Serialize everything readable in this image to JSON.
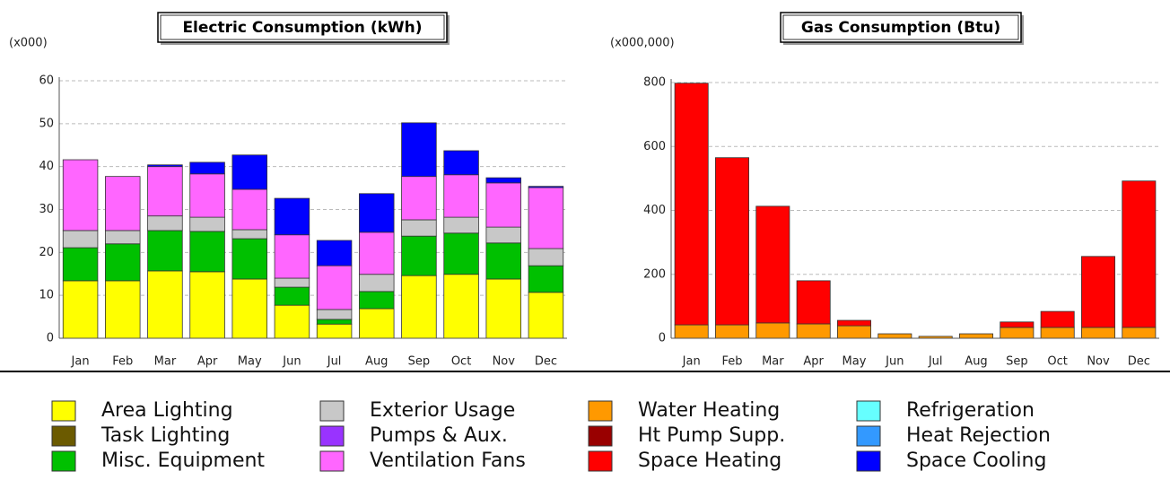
{
  "chart_data": [
    {
      "type": "bar",
      "stacked": true,
      "title": "Electric Consumption (kWh)",
      "y_unit": "(x000)",
      "categories": [
        "Jan",
        "Feb",
        "Mar",
        "Apr",
        "May",
        "Jun",
        "Jul",
        "Aug",
        "Sep",
        "Oct",
        "Nov",
        "Dec"
      ],
      "series": [
        {
          "color": "#ffff00",
          "values": [
            13.4,
            13.4,
            15.7,
            15.5,
            13.8,
            7.7,
            3.3,
            6.9,
            14.6,
            14.9,
            13.8,
            10.7
          ]
        },
        {
          "color": "#00c000",
          "values": [
            7.7,
            8.6,
            9.4,
            9.4,
            9.4,
            4.2,
            1.1,
            4.0,
            9.2,
            9.6,
            8.4,
            6.2
          ]
        },
        {
          "color": "#c8c8c8",
          "values": [
            4.0,
            3.1,
            3.4,
            3.3,
            2.1,
            2.1,
            2.3,
            4.0,
            3.8,
            3.7,
            3.7,
            4.0
          ]
        },
        {
          "color": "#ff66ff",
          "values": [
            16.5,
            12.6,
            11.5,
            10.1,
            9.4,
            10.1,
            10.2,
            9.8,
            10.1,
            9.9,
            10.3,
            14.2
          ]
        },
        {
          "color": "#0000ff",
          "values": [
            0,
            0,
            0.4,
            2.7,
            8.0,
            8.5,
            5.9,
            9.0,
            12.5,
            5.6,
            1.2,
            0.3
          ]
        }
      ],
      "ylim": [
        0,
        60
      ],
      "yticks": [
        0,
        10,
        20,
        30,
        40,
        50,
        60
      ],
      "grid": true
    },
    {
      "type": "bar",
      "stacked": true,
      "title": "Gas Consumption (Btu)",
      "y_unit": "(x000,000)",
      "categories": [
        "Jan",
        "Feb",
        "Mar",
        "Apr",
        "May",
        "Jun",
        "Jul",
        "Aug",
        "Sep",
        "Oct",
        "Nov",
        "Dec"
      ],
      "series": [
        {
          "color": "#ff9900",
          "values": [
            42,
            42,
            48,
            45,
            39,
            14,
            6,
            14,
            34,
            34,
            34,
            34
          ]
        },
        {
          "color": "#ff0000",
          "values": [
            756,
            523,
            365,
            135,
            17,
            0,
            0,
            0,
            17,
            50,
            222,
            458
          ]
        }
      ],
      "ylim": [
        0,
        800
      ],
      "yticks": [
        0,
        200,
        400,
        600,
        800
      ],
      "grid": true
    }
  ],
  "legend": [
    {
      "name": "Area Lighting",
      "color": "#ffff00"
    },
    {
      "name": "Task Lighting",
      "color": "#6b5a00"
    },
    {
      "name": "Misc. Equipment",
      "color": "#00c000"
    },
    {
      "name": "Exterior Usage",
      "color": "#c8c8c8"
    },
    {
      "name": "Pumps & Aux.",
      "color": "#9933ff"
    },
    {
      "name": "Ventilation Fans",
      "color": "#ff66ff"
    },
    {
      "name": "Water Heating",
      "color": "#ff9900"
    },
    {
      "name": "Ht Pump Supp.",
      "color": "#990000"
    },
    {
      "name": "Space Heating",
      "color": "#ff0000"
    },
    {
      "name": "Refrigeration",
      "color": "#66ffff"
    },
    {
      "name": "Heat Rejection",
      "color": "#3399ff"
    },
    {
      "name": "Space Cooling",
      "color": "#0000ff"
    }
  ]
}
